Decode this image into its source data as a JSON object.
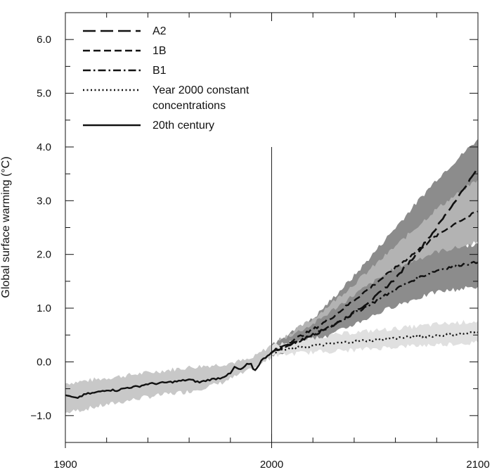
{
  "chart_data": {
    "type": "line",
    "title": "",
    "xlabel": "",
    "ylabel": "Global surface warming (°C)",
    "xlim": [
      1900,
      2100
    ],
    "ylim": [
      -1.5,
      6.5
    ],
    "x_ticks": [
      1900,
      2000,
      2100
    ],
    "x_tick_labels": [
      "1900",
      "2000",
      "2100"
    ],
    "x_minor_step": 20,
    "y_ticks": [
      -1.0,
      0.0,
      1.0,
      2.0,
      3.0,
      4.0,
      5.0,
      6.0
    ],
    "y_tick_labels": [
      "−1.0",
      "0.0",
      "1.0",
      "2.0",
      "3.0",
      "4.0",
      "5.0",
      "6.0"
    ],
    "y_minor_step": 0.5,
    "reference_line": {
      "x": 2000,
      "y_from": -1.5,
      "y_to": 4.0
    },
    "legend": {
      "placement": "top-left",
      "entries": [
        {
          "label_lines": [
            "A2"
          ],
          "series": "A2"
        },
        {
          "label_lines": [
            "1B"
          ],
          "series": "1B"
        },
        {
          "label_lines": [
            "B1"
          ],
          "series": "B1"
        },
        {
          "label_lines": [
            "Year 2000 constant",
            "concentrations"
          ],
          "series": "Year 2000 constant concentrations"
        },
        {
          "label_lines": [
            "20th century"
          ],
          "series": "20th century"
        }
      ]
    },
    "bands": [
      {
        "name": "20th century range",
        "color": "#c8c8c8",
        "x": [
          1900,
          1920,
          1940,
          1960,
          1975,
          1990,
          2000
        ],
        "lower": [
          -0.95,
          -0.8,
          -0.65,
          -0.55,
          -0.4,
          -0.15,
          0.08
        ],
        "upper": [
          -0.4,
          -0.3,
          -0.2,
          -0.1,
          -0.05,
          0.05,
          0.32
        ]
      },
      {
        "name": "A2 range",
        "color": "#8c8c8c",
        "x": [
          2000,
          2020,
          2040,
          2060,
          2080,
          2100
        ],
        "lower": [
          0.12,
          0.45,
          0.95,
          1.55,
          2.25,
          2.75
        ],
        "upper": [
          0.32,
          0.8,
          1.6,
          2.5,
          3.4,
          4.15
        ]
      },
      {
        "name": "1B range",
        "color": "#b3b3b3",
        "x": [
          2000,
          2020,
          2040,
          2060,
          2080,
          2100
        ],
        "lower": [
          0.12,
          0.4,
          0.85,
          1.35,
          1.85,
          2.25
        ],
        "upper": [
          0.32,
          0.8,
          1.45,
          2.15,
          2.85,
          3.4
        ]
      },
      {
        "name": "B1 range",
        "color": "#8c8c8c",
        "x": [
          2000,
          2020,
          2040,
          2060,
          2080,
          2100
        ],
        "lower": [
          0.12,
          0.35,
          0.7,
          1.05,
          1.3,
          1.4
        ],
        "upper": [
          0.32,
          0.7,
          1.25,
          1.75,
          2.05,
          2.2
        ]
      },
      {
        "name": "Year 2000 constant range",
        "color": "#e0e0e0",
        "x": [
          2000,
          2020,
          2040,
          2060,
          2080,
          2100
        ],
        "lower": [
          0.12,
          0.18,
          0.22,
          0.28,
          0.32,
          0.36
        ],
        "upper": [
          0.3,
          0.45,
          0.55,
          0.62,
          0.7,
          0.76
        ]
      }
    ],
    "series": [
      {
        "name": "20th century",
        "dash": "solid",
        "stroke_width": 2.4,
        "x": [
          1900,
          1905,
          1910,
          1915,
          1920,
          1925,
          1930,
          1935,
          1940,
          1945,
          1950,
          1955,
          1960,
          1965,
          1970,
          1975,
          1980,
          1982,
          1985,
          1988,
          1990,
          1991,
          1992,
          1995,
          1998,
          2000
        ],
        "y": [
          -0.62,
          -0.68,
          -0.6,
          -0.57,
          -0.52,
          -0.53,
          -0.48,
          -0.46,
          -0.41,
          -0.4,
          -0.38,
          -0.36,
          -0.33,
          -0.38,
          -0.33,
          -0.3,
          -0.22,
          -0.1,
          -0.15,
          -0.05,
          -0.05,
          -0.12,
          -0.16,
          0.02,
          0.12,
          0.18
        ]
      },
      {
        "name": "A2",
        "dash": "long-dash",
        "stroke_width": 2.6,
        "x": [
          2000,
          2010,
          2020,
          2030,
          2040,
          2050,
          2060,
          2070,
          2080,
          2090,
          2100
        ],
        "y": [
          0.18,
          0.35,
          0.5,
          0.68,
          0.92,
          1.2,
          1.55,
          2.0,
          2.5,
          3.05,
          3.6
        ]
      },
      {
        "name": "1B",
        "dash": "dash",
        "stroke_width": 2.4,
        "x": [
          2000,
          2010,
          2020,
          2030,
          2040,
          2050,
          2060,
          2070,
          2080,
          2090,
          2100
        ],
        "y": [
          0.18,
          0.4,
          0.6,
          0.85,
          1.15,
          1.45,
          1.75,
          2.05,
          2.35,
          2.6,
          2.8
        ]
      },
      {
        "name": "B1",
        "dash": "dash-dot",
        "stroke_width": 2.4,
        "x": [
          2000,
          2010,
          2020,
          2030,
          2040,
          2050,
          2060,
          2070,
          2080,
          2090,
          2100
        ],
        "y": [
          0.18,
          0.33,
          0.5,
          0.7,
          0.9,
          1.12,
          1.35,
          1.55,
          1.7,
          1.8,
          1.85
        ]
      },
      {
        "name": "Year 2000 constant concentrations",
        "dash": "dotted",
        "stroke_width": 2.4,
        "x": [
          2000,
          2010,
          2020,
          2030,
          2040,
          2050,
          2060,
          2070,
          2080,
          2090,
          2100
        ],
        "y": [
          0.18,
          0.25,
          0.3,
          0.34,
          0.38,
          0.41,
          0.44,
          0.47,
          0.49,
          0.52,
          0.55
        ]
      }
    ]
  }
}
